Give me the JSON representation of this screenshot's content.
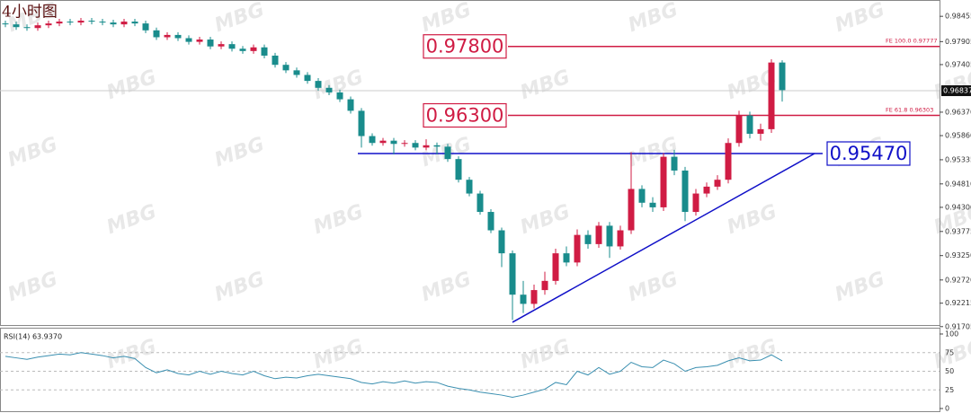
{
  "chart_data": {
    "type": "candlestick",
    "title": "4小时图",
    "watermark": "MBG",
    "colors": {
      "up": "#d01c44",
      "down": "#198c8c"
    },
    "ylim": [
      0.9174,
      0.9881
    ],
    "yticks": [
      0.98455,
      0.97905,
      0.97405,
      {
        "value": 0.9637,
        "label": "0.96370"
      },
      {
        "value": 0.9586,
        "label": "0.95860"
      },
      0.95335,
      {
        "value": 0.9481,
        "label": "0.94810"
      },
      {
        "value": 0.943,
        "label": "0.94300"
      },
      0.93775,
      {
        "value": 0.9325,
        "label": "0.93250"
      },
      {
        "value": 0.9272,
        "label": "0.92720"
      },
      0.92215,
      0.91705
    ],
    "current_price": 0.96837,
    "candles": [
      [
        0.983,
        0.9836,
        0.9822,
        0.9828
      ],
      [
        0.9828,
        0.9834,
        0.9816,
        0.9822
      ],
      [
        0.9822,
        0.9828,
        0.9814,
        0.982
      ],
      [
        0.982,
        0.9832,
        0.9814,
        0.9826
      ],
      [
        0.9826,
        0.9836,
        0.982,
        0.983
      ],
      [
        0.983,
        0.984,
        0.9824,
        0.9834
      ],
      [
        0.9834,
        0.984,
        0.9826,
        0.9832
      ],
      [
        0.9832,
        0.9842,
        0.9826,
        0.9836
      ],
      [
        0.9836,
        0.9842,
        0.9828,
        0.9834
      ],
      [
        0.9834,
        0.984,
        0.9826,
        0.9832
      ],
      [
        0.9832,
        0.9838,
        0.9822,
        0.9828
      ],
      [
        0.9828,
        0.984,
        0.9822,
        0.9834
      ],
      [
        0.9834,
        0.984,
        0.9824,
        0.983
      ],
      [
        0.983,
        0.9836,
        0.9809,
        0.9815
      ],
      [
        0.9815,
        0.9821,
        0.9794,
        0.98
      ],
      [
        0.98,
        0.9811,
        0.9794,
        0.9805
      ],
      [
        0.9805,
        0.9811,
        0.9792,
        0.9798
      ],
      [
        0.9798,
        0.9804,
        0.9784,
        0.979
      ],
      [
        0.979,
        0.9801,
        0.9784,
        0.9795
      ],
      [
        0.9795,
        0.9801,
        0.9774,
        0.978
      ],
      [
        0.978,
        0.9791,
        0.9774,
        0.9785
      ],
      [
        0.9785,
        0.9791,
        0.9769,
        0.9775
      ],
      [
        0.9775,
        0.9781,
        0.9764,
        0.977
      ],
      [
        0.977,
        0.9784,
        0.9764,
        0.9778
      ],
      [
        0.9778,
        0.9784,
        0.9754,
        0.976
      ],
      [
        0.976,
        0.9766,
        0.9734,
        0.974
      ],
      [
        0.974,
        0.9746,
        0.9722,
        0.9728
      ],
      [
        0.9728,
        0.9734,
        0.9712,
        0.9718
      ],
      [
        0.9718,
        0.9724,
        0.9699,
        0.9705
      ],
      [
        0.9705,
        0.9711,
        0.9684,
        0.969
      ],
      [
        0.969,
        0.9696,
        0.9674,
        0.968
      ],
      [
        0.968,
        0.9686,
        0.9659,
        0.9665
      ],
      [
        0.9665,
        0.9671,
        0.9634,
        0.964
      ],
      [
        0.964,
        0.9646,
        0.956,
        0.9585
      ],
      [
        0.9585,
        0.9591,
        0.9564,
        0.957
      ],
      [
        0.957,
        0.9581,
        0.9564,
        0.9575
      ],
      [
        0.9575,
        0.9581,
        0.9545,
        0.9568
      ],
      [
        0.9568,
        0.9576,
        0.9562,
        0.957
      ],
      [
        0.957,
        0.9576,
        0.9554,
        0.956
      ],
      [
        0.956,
        0.9578,
        0.9554,
        0.9565
      ],
      [
        0.9565,
        0.9571,
        0.9545,
        0.9562
      ],
      [
        0.9562,
        0.9568,
        0.9529,
        0.9535
      ],
      [
        0.9535,
        0.9541,
        0.9484,
        0.949
      ],
      [
        0.949,
        0.9496,
        0.9454,
        0.946
      ],
      [
        0.946,
        0.9466,
        0.9414,
        0.942
      ],
      [
        0.942,
        0.9426,
        0.9374,
        0.938
      ],
      [
        0.938,
        0.9386,
        0.93,
        0.933
      ],
      [
        0.933,
        0.9336,
        0.9185,
        0.924
      ],
      [
        0.924,
        0.927,
        0.92,
        0.922
      ],
      [
        0.922,
        0.9262,
        0.921,
        0.925
      ],
      [
        0.925,
        0.929,
        0.924,
        0.927
      ],
      [
        0.927,
        0.934,
        0.9262,
        0.933
      ],
      [
        0.933,
        0.9345,
        0.9302,
        0.931
      ],
      [
        0.931,
        0.9382,
        0.9302,
        0.937
      ],
      [
        0.937,
        0.938,
        0.934,
        0.935
      ],
      [
        0.935,
        0.9398,
        0.9342,
        0.939
      ],
      [
        0.939,
        0.9398,
        0.932,
        0.9345
      ],
      [
        0.9345,
        0.939,
        0.9338,
        0.938
      ],
      [
        0.938,
        0.955,
        0.9372,
        0.947
      ],
      [
        0.947,
        0.9478,
        0.943,
        0.944
      ],
      [
        0.944,
        0.9452,
        0.942,
        0.943
      ],
      [
        0.943,
        0.9548,
        0.9422,
        0.954
      ],
      [
        0.954,
        0.9555,
        0.95,
        0.951
      ],
      [
        0.951,
        0.9518,
        0.94,
        0.942
      ],
      [
        0.942,
        0.947,
        0.9412,
        0.946
      ],
      [
        0.946,
        0.9484,
        0.9452,
        0.9475
      ],
      [
        0.9475,
        0.95,
        0.9468,
        0.949
      ],
      [
        0.949,
        0.958,
        0.9482,
        0.957
      ],
      [
        0.957,
        0.964,
        0.9562,
        0.963
      ],
      [
        0.963,
        0.9638,
        0.958,
        0.959
      ],
      [
        0.959,
        0.9612,
        0.9575,
        0.96
      ],
      [
        0.96,
        0.9752,
        0.9592,
        0.9745
      ],
      [
        0.9745,
        0.975,
        0.966,
        0.9685
      ]
    ],
    "levels": [
      {
        "value": 0.978,
        "label": "0.97800",
        "color": "#d01c44",
        "note": "FE 100.0  0.97777"
      },
      {
        "value": 0.963,
        "label": "0.96300",
        "color": "#d01c44",
        "note": "FE 61.8  0.96303"
      },
      {
        "value": 0.9547,
        "label": "0.95470",
        "color": "#1010c8"
      }
    ],
    "trendline": {
      "color": "#1010c8",
      "from": [
        47,
        0.918
      ],
      "to": [
        75,
        0.9547
      ]
    },
    "rsi": {
      "label": "RSI(14) 63.9370",
      "color": "#3a8fb0",
      "ylim": [
        0,
        100
      ],
      "yticks": [
        100,
        75,
        50,
        25,
        0
      ],
      "values": [
        70,
        68,
        66,
        69,
        71,
        73,
        72,
        75,
        73,
        71,
        68,
        70,
        67,
        55,
        48,
        52,
        47,
        45,
        50,
        46,
        50,
        47,
        45,
        50,
        44,
        40,
        42,
        41,
        44,
        46,
        44,
        42,
        40,
        35,
        33,
        36,
        34,
        37,
        34,
        36,
        35,
        30,
        27,
        25,
        22,
        20,
        18,
        15,
        18,
        22,
        26,
        35,
        32,
        50,
        45,
        55,
        46,
        50,
        62,
        56,
        55,
        65,
        60,
        50,
        55,
        56,
        58,
        64,
        68,
        64,
        65,
        72,
        63.937
      ]
    }
  }
}
